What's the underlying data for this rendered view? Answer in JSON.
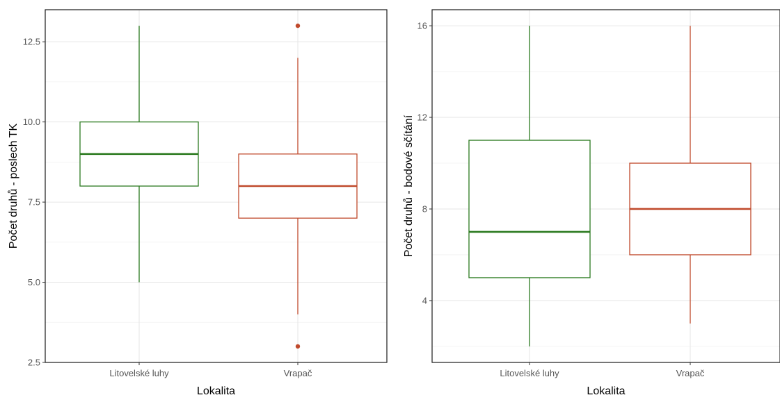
{
  "colors": {
    "Litovelské luhy": "#2b7a1f",
    "Vrapač": "#c04a2c"
  },
  "chart_data": [
    {
      "type": "boxplot",
      "xlabel": "Lokalita",
      "ylabel": "Počet druhů - poslech TK",
      "categories": [
        "Litovelské luhy",
        "Vrapač"
      ],
      "ylim": [
        2.5,
        13.5
      ],
      "yticks": [
        2.5,
        5.0,
        7.5,
        10.0,
        12.5
      ],
      "ytick_labels": [
        "2.5",
        "5.0",
        "7.5",
        "10.0",
        "12.5"
      ],
      "grid": true,
      "boxes": [
        {
          "category": "Litovelské luhy",
          "whisker_low": 5,
          "q1": 8,
          "median": 9,
          "q3": 10,
          "whisker_high": 13,
          "outliers": []
        },
        {
          "category": "Vrapač",
          "whisker_low": 4,
          "q1": 7,
          "median": 8,
          "q3": 9,
          "whisker_high": 12,
          "outliers": [
            3,
            13
          ]
        }
      ]
    },
    {
      "type": "boxplot",
      "xlabel": "Lokalita",
      "ylabel": "Počet druhů - bodové sčítání",
      "categories": [
        "Litovelské luhy",
        "Vrapač"
      ],
      "ylim": [
        1.3,
        16.7
      ],
      "yticks": [
        4,
        8,
        12,
        16
      ],
      "ytick_labels": [
        "4",
        "8",
        "12",
        "16"
      ],
      "grid": true,
      "boxes": [
        {
          "category": "Litovelské luhy",
          "whisker_low": 2,
          "q1": 5,
          "median": 7,
          "q3": 11,
          "whisker_high": 16,
          "outliers": []
        },
        {
          "category": "Vrapač",
          "whisker_low": 3,
          "q1": 6,
          "median": 8,
          "q3": 10,
          "whisker_high": 16,
          "outliers": []
        }
      ]
    }
  ]
}
